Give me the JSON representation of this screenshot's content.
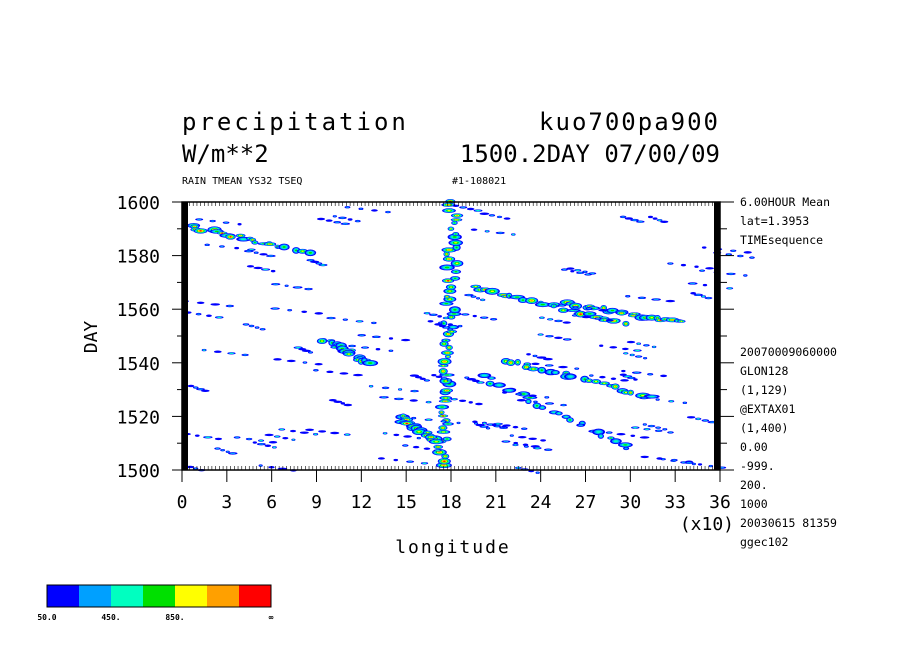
{
  "header": {
    "title_left": "precipitation",
    "title_right": "kuo700pa900",
    "units": "W/m**2",
    "time_info": "1500.2DAY 07/00/09",
    "subtitle_left": "RAIN TMEAN YS32 TSEQ",
    "subtitle_right": "#1-108021"
  },
  "info_top": [
    "6.00HOUR Mean",
    "lat=1.3953",
    "TIMEsequence"
  ],
  "info_bottom": [
    "20070009060000",
    "GLON128",
    "(1,129)",
    "@EXTAX01",
    "(1,400)",
    "0.00",
    "-999.",
    "200.",
    "1000",
    "20030615  81359",
    "ggec102"
  ],
  "chart_data": {
    "type": "heatmap",
    "title": "precipitation",
    "xlabel": "longitude",
    "ylabel": "DAY",
    "x_multiplier": "(x10)",
    "xlim": [
      0,
      36
    ],
    "ylim": [
      1500,
      1600
    ],
    "x_ticks": [
      "0",
      "3",
      "6",
      "9",
      "12",
      "15",
      "18",
      "21",
      "24",
      "27",
      "30",
      "33",
      "36"
    ],
    "y_ticks": [
      "1500",
      "1520",
      "1540",
      "1560",
      "1580",
      "1600"
    ],
    "contour_levels": [
      50,
      250,
      450,
      650,
      850,
      1050
    ],
    "colorbar": {
      "colors": [
        "#0000ff",
        "#00a0ff",
        "#00ffc0",
        "#00e000",
        "#ffff00",
        "#ffa000",
        "#ff0000"
      ],
      "labels": [
        "50.0",
        "450.",
        "850.",
        "∞"
      ]
    },
    "features": [
      {
        "kind": "stationary band",
        "x": [
          17.4,
          18.2
        ],
        "y": [
          1502,
          1600
        ],
        "peak": "red"
      },
      {
        "kind": "westward streak",
        "x": [
          0.5,
          8.5
        ],
        "y": [
          1591,
          1581
        ],
        "peak": "red"
      },
      {
        "kind": "westward streak",
        "x": [
          19.5,
          29.5
        ],
        "y": [
          1568,
          1555
        ],
        "peak": "red"
      },
      {
        "kind": "westward streak",
        "x": [
          21.5,
          31.5
        ],
        "y": [
          1541,
          1527
        ],
        "peak": "orange"
      },
      {
        "kind": "westward streak",
        "x": [
          20.0,
          30.0
        ],
        "y": [
          1535,
          1508
        ],
        "peak": "green"
      },
      {
        "kind": "convective cluster",
        "x": [
          9.5,
          12.5
        ],
        "y": [
          1549,
          1540
        ],
        "peak": "orange"
      },
      {
        "kind": "westward streak",
        "x": [
          25.5,
          33.5
        ],
        "y": [
          1562,
          1555
        ],
        "peak": "red"
      },
      {
        "kind": "westward streak",
        "x": [
          14.5,
          17.0
        ],
        "y": [
          1520,
          1511
        ],
        "peak": "red"
      }
    ]
  }
}
